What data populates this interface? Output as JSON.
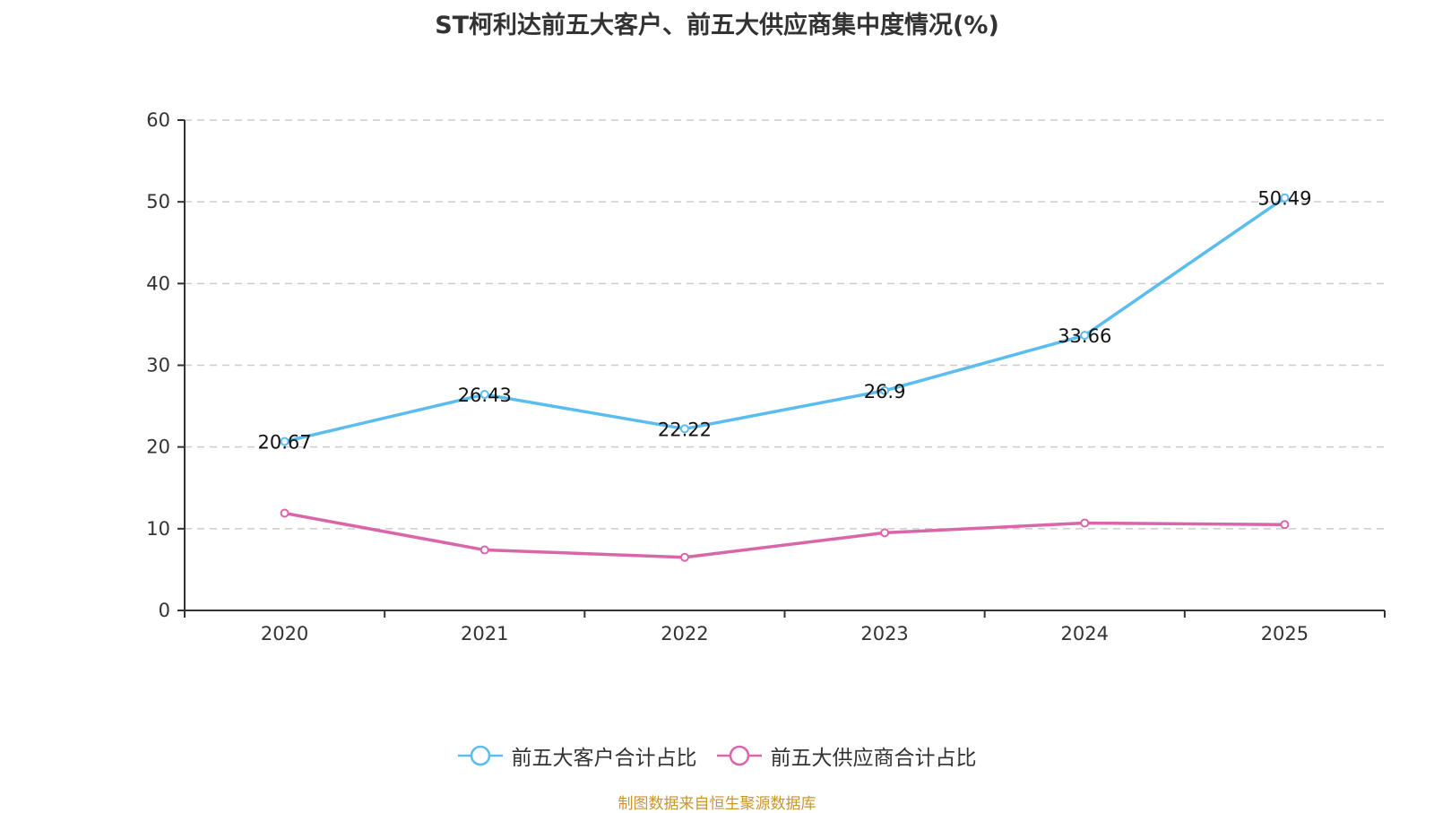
{
  "chart_data": {
    "type": "line",
    "title": "ST柯利达前五大客户、前五大供应商集中度情况(%)",
    "xlabel": "",
    "ylabel": "",
    "categories": [
      "2020",
      "2021",
      "2022",
      "2023",
      "2024",
      "2025"
    ],
    "ylim": [
      0,
      60
    ],
    "yticks": [
      "0",
      "10",
      "20",
      "30",
      "40",
      "50",
      "60"
    ],
    "grid": "horizontal-dashed",
    "legend_position": "bottom",
    "series": [
      {
        "name": "前五大客户合计占比",
        "color": "#5bbcf0",
        "values": [
          20.67,
          26.43,
          22.22,
          26.9,
          33.66,
          50.49
        ],
        "labels": [
          "20.67",
          "26.43",
          "22.22",
          "26.9",
          "33.66",
          "50.49"
        ],
        "show_labels": true
      },
      {
        "name": "前五大供应商合计占比",
        "color": "#d966a8",
        "values": [
          11.9,
          7.4,
          6.5,
          9.5,
          10.7,
          10.5
        ],
        "show_labels": false
      }
    ],
    "source": "制图数据来自恒生聚源数据库"
  }
}
